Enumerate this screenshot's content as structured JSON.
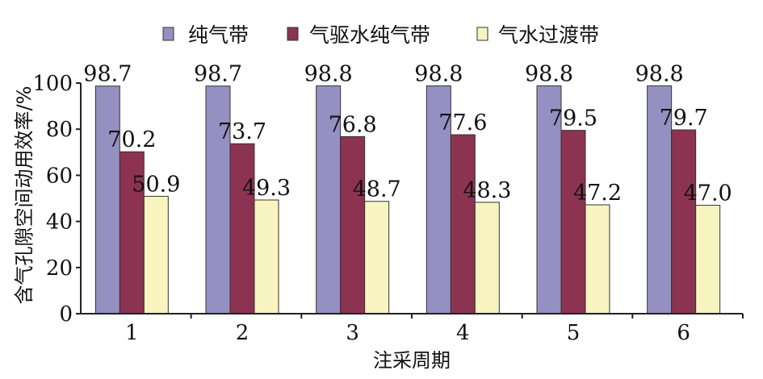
{
  "chart_data": {
    "type": "bar",
    "categories": [
      "1",
      "2",
      "3",
      "4",
      "5",
      "6"
    ],
    "series": [
      {
        "name": "纯气带",
        "values": [
          98.7,
          98.7,
          98.8,
          98.8,
          98.8,
          98.8
        ],
        "value_labels": [
          "98.7",
          "98.7",
          "98.8",
          "98.8",
          "98.8",
          "98.8"
        ],
        "color": "#9590c2"
      },
      {
        "name": "气驱水纯气带",
        "values": [
          70.2,
          73.7,
          76.8,
          77.6,
          79.5,
          79.7
        ],
        "value_labels": [
          "70.2",
          "73.7",
          "76.8",
          "77.6",
          "79.5",
          "79.7"
        ],
        "color": "#8c3352"
      },
      {
        "name": "气水过渡带",
        "values": [
          50.9,
          49.3,
          48.7,
          48.3,
          47.2,
          47.0
        ],
        "value_labels": [
          "50.9",
          "49.3",
          "48.7",
          "48.3",
          "47.2",
          "47.0"
        ],
        "color": "#f7f4bf"
      }
    ],
    "xlabel": "注采周期",
    "ylabel": "含气孔隙空间动用效率/%",
    "ylim": [
      0,
      100
    ],
    "yticks": [
      "0",
      "20",
      "40",
      "60",
      "80",
      "100"
    ],
    "grid": false,
    "legend_position": "top"
  }
}
